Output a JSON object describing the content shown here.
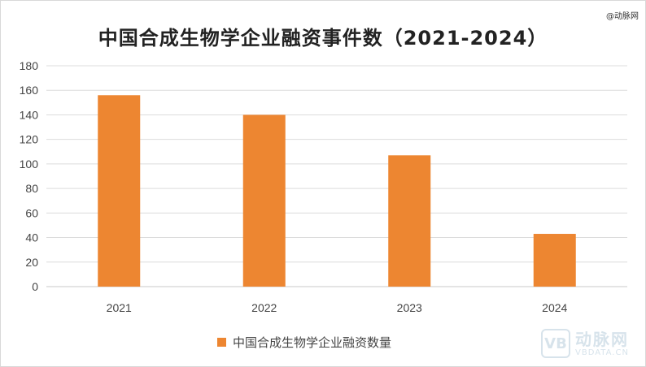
{
  "watermark_top": "@动脉网",
  "logo": {
    "mark": "VB",
    "cn": "动脉网",
    "en": "VBDATA.CN"
  },
  "chart_data": {
    "type": "bar",
    "title": "中国合成生物学企业融资事件数（2021-2024）",
    "categories": [
      "2021",
      "2022",
      "2023",
      "2024"
    ],
    "series": [
      {
        "name": "中国合成生物学企业融资数量",
        "values": [
          156,
          140,
          107,
          43
        ],
        "color": "#ed8631"
      }
    ],
    "ylim": [
      0,
      180
    ],
    "ytick_step": 20,
    "grid": true,
    "legend": "bottom"
  }
}
